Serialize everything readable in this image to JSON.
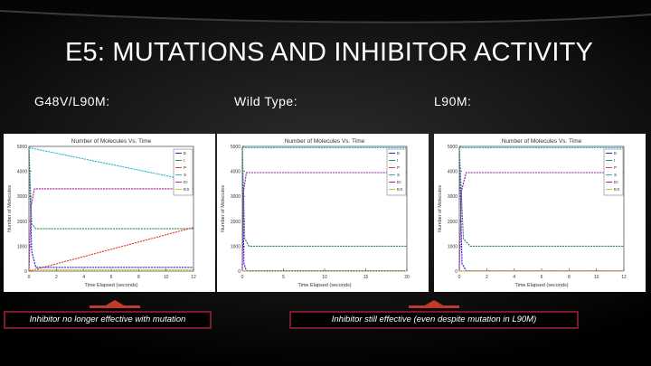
{
  "slide": {
    "title": "E5: MUTATIONS AND INHIBITOR ACTIVITY",
    "labels": {
      "left": "G48V/L90M:",
      "middle": "Wild Type:",
      "right": "L90M:"
    },
    "callouts": {
      "left": "Inhibitor no longer effective with mutation",
      "right": "Inhibitor still effective (even despite mutation in L90M)"
    }
  },
  "chart_data": [
    {
      "type": "line",
      "title": "Number of Molecules Vs. Time",
      "xlabel": "Time Elapsed (seconds)",
      "ylabel": "Number of Molecules",
      "xlim": [
        0,
        12
      ],
      "ylim": [
        0,
        5000
      ],
      "xticks": [
        "0",
        "2",
        "4",
        "6",
        "8",
        "10",
        "12"
      ],
      "yticks": [
        "0",
        "1000",
        "2000",
        "3000",
        "4000",
        "5000"
      ],
      "legend": [
        "E",
        "I",
        "P",
        "S",
        "EI",
        "ES"
      ],
      "legend_position": "top-right",
      "series": [
        {
          "name": "E",
          "color": "#1f2bd6",
          "x": [
            0,
            0.2,
            0.5,
            12
          ],
          "y": [
            4950,
            800,
            150,
            150
          ]
        },
        {
          "name": "I",
          "color": "#2e8b57",
          "x": [
            0,
            0.2,
            0.5,
            12
          ],
          "y": [
            4950,
            1900,
            1700,
            1700
          ]
        },
        {
          "name": "P",
          "color": "#e04030",
          "x": [
            0,
            12
          ],
          "y": [
            0,
            1750
          ]
        },
        {
          "name": "S",
          "color": "#2bb7c9",
          "x": [
            0,
            12
          ],
          "y": [
            4950,
            3600
          ]
        },
        {
          "name": "EI",
          "color": "#a020a8",
          "x": [
            0,
            0.15,
            0.4,
            12
          ],
          "y": [
            0,
            2600,
            3300,
            3300
          ]
        },
        {
          "name": "ES",
          "color": "#d8c020",
          "x": [
            0,
            12
          ],
          "y": [
            50,
            50
          ]
        }
      ]
    },
    {
      "type": "line",
      "title": "Number of Molecules Vs. Time",
      "xlabel": "Time Elapsed (seconds)",
      "ylabel": "Number of Molecules",
      "xlim": [
        0,
        20
      ],
      "ylim": [
        0,
        5000
      ],
      "xticks": [
        "0",
        "5",
        "10",
        "15",
        "20"
      ],
      "yticks": [
        "0",
        "1000",
        "2000",
        "3000",
        "4000",
        "5000"
      ],
      "legend": [
        "E",
        "I",
        "P",
        "S",
        "EI",
        "ES"
      ],
      "legend_position": "top-right",
      "series": [
        {
          "name": "E",
          "color": "#1f2bd6",
          "x": [
            0,
            0.2,
            0.5,
            20
          ],
          "y": [
            4950,
            300,
            10,
            10
          ]
        },
        {
          "name": "I",
          "color": "#2e8b57",
          "x": [
            0,
            0.3,
            0.8,
            20
          ],
          "y": [
            4950,
            1300,
            1000,
            1000
          ]
        },
        {
          "name": "P",
          "color": "#e04030",
          "x": [
            0,
            20
          ],
          "y": [
            0,
            0
          ]
        },
        {
          "name": "S",
          "color": "#2bb7c9",
          "x": [
            0,
            20
          ],
          "y": [
            4950,
            4950
          ]
        },
        {
          "name": "EI",
          "color": "#a020a8",
          "x": [
            0,
            0.15,
            0.5,
            20
          ],
          "y": [
            0,
            3200,
            3950,
            3950
          ]
        },
        {
          "name": "ES",
          "color": "#d8c020",
          "x": [
            0,
            20
          ],
          "y": [
            5,
            5
          ]
        }
      ]
    },
    {
      "type": "line",
      "title": "Number of Molecules Vs. Time",
      "xlabel": "Time Elapsed (seconds)",
      "ylabel": "Number of Molecules",
      "xlim": [
        0,
        12
      ],
      "ylim": [
        0,
        5000
      ],
      "xticks": [
        "0",
        "2",
        "4",
        "6",
        "8",
        "10",
        "12"
      ],
      "yticks": [
        "0",
        "1000",
        "2000",
        "3000",
        "4000",
        "5000"
      ],
      "legend": [
        "E",
        "I",
        "P",
        "S",
        "EI",
        "ES"
      ],
      "legend_position": "top-right",
      "series": [
        {
          "name": "E",
          "color": "#1f2bd6",
          "x": [
            0,
            0.2,
            0.5,
            12
          ],
          "y": [
            4950,
            300,
            10,
            10
          ]
        },
        {
          "name": "I",
          "color": "#2e8b57",
          "x": [
            0,
            0.3,
            0.8,
            12
          ],
          "y": [
            4950,
            1300,
            1000,
            1000
          ]
        },
        {
          "name": "P",
          "color": "#e04030",
          "x": [
            0,
            12
          ],
          "y": [
            0,
            0
          ]
        },
        {
          "name": "S",
          "color": "#2bb7c9",
          "x": [
            0,
            12
          ],
          "y": [
            4950,
            4950
          ]
        },
        {
          "name": "EI",
          "color": "#a020a8",
          "x": [
            0,
            0.15,
            0.5,
            12
          ],
          "y": [
            0,
            3200,
            3950,
            3950
          ]
        },
        {
          "name": "ES",
          "color": "#d8c020",
          "x": [
            0,
            12
          ],
          "y": [
            5,
            5
          ]
        }
      ]
    }
  ]
}
